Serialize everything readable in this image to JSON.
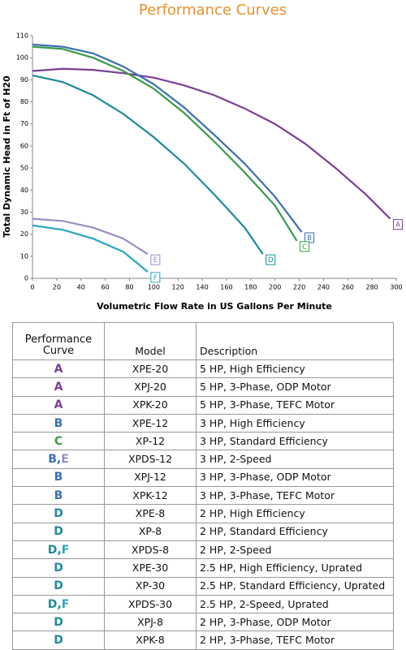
{
  "chart_data": {
    "type": "line",
    "title": "Performance Curves",
    "x_label": "Volumetric Flow Rate in US Gallons Per Minute",
    "y_label": "Total Dynamic Head in Ft of H20",
    "xlim": [
      0,
      300
    ],
    "ylim": [
      0,
      110
    ],
    "xticks": [
      0,
      20,
      40,
      60,
      80,
      100,
      120,
      140,
      160,
      180,
      200,
      220,
      240,
      260,
      280,
      300
    ],
    "yticks": [
      0,
      10,
      20,
      30,
      40,
      50,
      60,
      70,
      80,
      90,
      100,
      110
    ],
    "title_color": "#e8912e",
    "series": [
      {
        "name": "A",
        "color": "#7b3f98",
        "x": [
          0,
          25,
          50,
          75,
          100,
          125,
          150,
          175,
          200,
          225,
          250,
          275,
          295
        ],
        "values": [
          94,
          95,
          94.5,
          93,
          91,
          87.5,
          83,
          77,
          70,
          61,
          50,
          38,
          27
        ]
      },
      {
        "name": "B",
        "color": "#3a6fb0",
        "x": [
          0,
          25,
          50,
          75,
          100,
          125,
          150,
          175,
          200,
          222
        ],
        "values": [
          106,
          105,
          102,
          96,
          88,
          77.5,
          65,
          52,
          37,
          21
        ]
      },
      {
        "name": "C",
        "color": "#3a9a4a",
        "x": [
          0,
          25,
          50,
          75,
          100,
          125,
          150,
          175,
          200,
          218
        ],
        "values": [
          105,
          104,
          100,
          94,
          86,
          75,
          62,
          48,
          33,
          17
        ]
      },
      {
        "name": "D",
        "color": "#1f8a9a",
        "x": [
          0,
          25,
          50,
          75,
          100,
          125,
          150,
          175,
          190
        ],
        "values": [
          92,
          89,
          83,
          74.5,
          64,
          52,
          38,
          23,
          11
        ]
      },
      {
        "name": "E",
        "color": "#9b8cc4",
        "x": [
          0,
          25,
          50,
          75,
          95
        ],
        "values": [
          27,
          26,
          23,
          18,
          11
        ]
      },
      {
        "name": "F",
        "color": "#2aa6c0",
        "x": [
          0,
          25,
          50,
          75,
          95
        ],
        "values": [
          24,
          22,
          18,
          12,
          3
        ]
      }
    ]
  },
  "table": {
    "header": [
      "Performance Curve",
      "Model",
      "Description"
    ],
    "rows": [
      [
        "A",
        "XPE-20",
        "5 HP, High Efficiency"
      ],
      [
        "A",
        "XPJ-20",
        "5 HP, 3-Phase, ODP Motor"
      ],
      [
        "A",
        "XPK-20",
        "5 HP, 3-Phase, TEFC Motor"
      ],
      [
        "B",
        "XPE-12",
        "3 HP, High Efficiency"
      ],
      [
        "C",
        "XP-12",
        "3 HP, Standard Efficiency"
      ],
      [
        "B,E",
        "XPDS-12",
        "3 HP, 2-Speed"
      ],
      [
        "B",
        "XPJ-12",
        "3 HP, 3-Phase, ODP Motor"
      ],
      [
        "B",
        "XPK-12",
        "3 HP, 3-Phase, TEFC Motor"
      ],
      [
        "D",
        "XPE-8",
        "2 HP, High Efficiency"
      ],
      [
        "D",
        "XP-8",
        "2 HP, Standard Efficiency"
      ],
      [
        "D,F",
        "XPDS-8",
        "2 HP, 2-Speed"
      ],
      [
        "D",
        "XPE-30",
        "2.5 HP, High Efficiency, Uprated"
      ],
      [
        "D",
        "XP-30",
        "2.5 HP, Standard Efficiency, Uprated"
      ],
      [
        "D,F",
        "XPDS-30",
        "2.5 HP, 2-Speed, Uprated"
      ],
      [
        "D",
        "XPJ-8",
        "2 HP, 3-Phase, ODP Motor"
      ],
      [
        "D",
        "XPK-8",
        "2 HP, 3-Phase, TEFC Motor"
      ]
    ]
  }
}
